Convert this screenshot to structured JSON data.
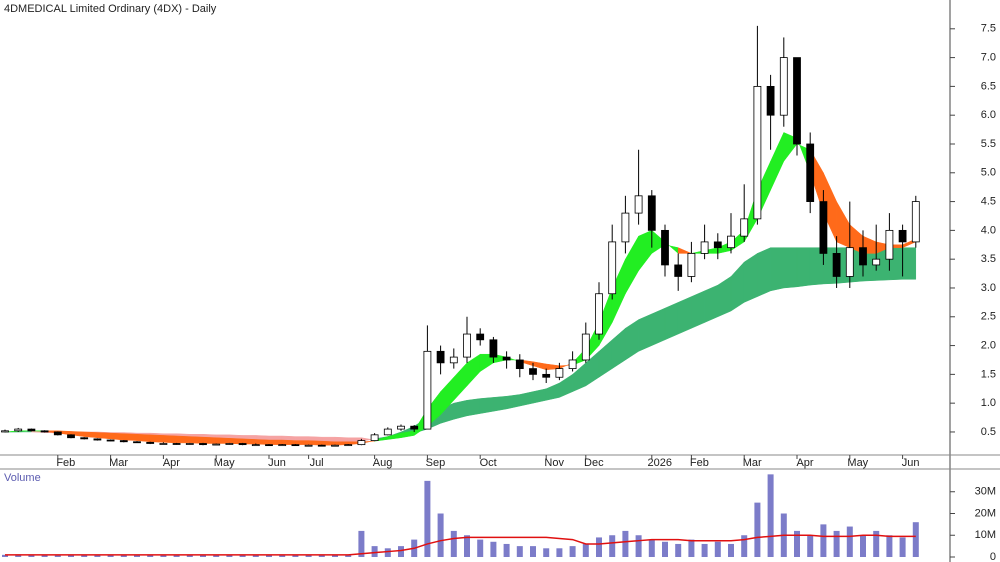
{
  "chart_data": [
    {
      "type": "candlestick",
      "title": "4DMEDICAL Limited Ordinary (4DX) - Daily",
      "categories": [
        null,
        null,
        null,
        null,
        "Feb",
        null,
        null,
        null,
        "Mar",
        null,
        null,
        null,
        "Apr",
        null,
        null,
        null,
        "May",
        null,
        null,
        null,
        "Jun",
        null,
        null,
        "Jul",
        null,
        null,
        null,
        null,
        "Aug",
        null,
        null,
        null,
        "Sep",
        null,
        null,
        null,
        "Oct",
        null,
        null,
        null,
        null,
        "Nov",
        null,
        null,
        "Dec",
        null,
        null,
        null,
        null,
        "2026",
        null,
        null,
        "Feb",
        null,
        null,
        null,
        "Mar",
        null,
        null,
        null,
        "Apr",
        null,
        null,
        null,
        "May",
        null,
        null,
        null,
        "Jun",
        null
      ],
      "open": [
        0.5,
        0.52,
        0.55,
        0.52,
        0.5,
        0.45,
        0.4,
        0.38,
        0.36,
        0.35,
        0.33,
        0.32,
        0.3,
        0.3,
        0.29,
        0.3,
        0.28,
        0.29,
        0.3,
        0.28,
        0.28,
        0.27,
        0.28,
        0.27,
        0.27,
        0.26,
        0.27,
        0.28,
        0.35,
        0.45,
        0.55,
        0.6,
        0.55,
        1.9,
        1.7,
        1.8,
        2.2,
        2.1,
        1.8,
        1.75,
        1.6,
        1.5,
        1.45,
        1.6,
        1.75,
        2.2,
        2.9,
        3.8,
        4.3,
        4.6,
        4.0,
        3.4,
        3.2,
        3.6,
        3.8,
        3.7,
        3.9,
        4.2,
        6.5,
        6.0,
        7.0,
        5.5,
        4.5,
        3.6,
        3.2,
        3.7,
        3.4,
        3.5,
        4.0,
        3.8
      ],
      "high": [
        0.54,
        0.57,
        0.56,
        0.53,
        0.51,
        0.46,
        0.41,
        0.39,
        0.37,
        0.36,
        0.34,
        0.33,
        0.32,
        0.31,
        0.31,
        0.31,
        0.3,
        0.31,
        0.31,
        0.3,
        0.29,
        0.29,
        0.29,
        0.28,
        0.28,
        0.28,
        0.29,
        0.38,
        0.48,
        0.58,
        0.63,
        0.62,
        2.35,
        2.0,
        1.95,
        2.5,
        2.3,
        2.15,
        1.9,
        1.85,
        1.7,
        1.6,
        1.7,
        1.9,
        2.4,
        3.1,
        4.1,
        4.6,
        5.4,
        4.7,
        4.1,
        3.6,
        3.8,
        4.1,
        3.95,
        4.3,
        4.8,
        7.55,
        6.7,
        7.35,
        7.0,
        5.7,
        4.7,
        3.9,
        4.5,
        4.0,
        4.1,
        4.3,
        4.1,
        4.6
      ],
      "low": [
        0.49,
        0.5,
        0.51,
        0.49,
        0.44,
        0.39,
        0.37,
        0.35,
        0.34,
        0.32,
        0.31,
        0.29,
        0.29,
        0.28,
        0.28,
        0.27,
        0.27,
        0.28,
        0.27,
        0.27,
        0.26,
        0.26,
        0.26,
        0.26,
        0.25,
        0.25,
        0.26,
        0.27,
        0.34,
        0.44,
        0.52,
        0.5,
        0.55,
        1.5,
        1.6,
        1.7,
        2.0,
        1.7,
        1.6,
        1.45,
        1.4,
        1.35,
        1.4,
        1.55,
        1.7,
        2.1,
        2.8,
        3.6,
        4.1,
        3.7,
        3.2,
        2.95,
        3.1,
        3.5,
        3.5,
        3.6,
        3.8,
        4.1,
        5.4,
        5.8,
        5.3,
        4.3,
        3.4,
        3.0,
        3.0,
        3.2,
        3.3,
        3.3,
        3.2,
        3.7
      ],
      "close": [
        0.52,
        0.55,
        0.52,
        0.5,
        0.45,
        0.4,
        0.38,
        0.36,
        0.35,
        0.33,
        0.32,
        0.3,
        0.3,
        0.29,
        0.3,
        0.28,
        0.29,
        0.3,
        0.28,
        0.28,
        0.27,
        0.28,
        0.27,
        0.27,
        0.26,
        0.27,
        0.28,
        0.35,
        0.45,
        0.55,
        0.6,
        0.55,
        1.9,
        1.7,
        1.8,
        2.2,
        2.1,
        1.8,
        1.75,
        1.6,
        1.5,
        1.45,
        1.6,
        1.75,
        2.2,
        2.9,
        3.8,
        4.3,
        4.6,
        4.0,
        3.4,
        3.2,
        3.6,
        3.8,
        3.7,
        3.9,
        4.2,
        6.5,
        6.0,
        7.0,
        5.5,
        4.5,
        3.6,
        3.2,
        3.7,
        3.4,
        3.5,
        4.0,
        3.8,
        4.5
      ],
      "short_fast": [
        0.5,
        0.52,
        0.52,
        0.51,
        0.48,
        0.45,
        0.42,
        0.4,
        0.38,
        0.36,
        0.35,
        0.33,
        0.32,
        0.31,
        0.31,
        0.3,
        0.3,
        0.3,
        0.29,
        0.29,
        0.28,
        0.28,
        0.28,
        0.28,
        0.27,
        0.27,
        0.28,
        0.3,
        0.35,
        0.42,
        0.48,
        0.52,
        0.9,
        1.2,
        1.45,
        1.7,
        1.85,
        1.85,
        1.8,
        1.72,
        1.65,
        1.58,
        1.6,
        1.7,
        1.95,
        2.4,
        3.0,
        3.5,
        3.9,
        4.0,
        3.8,
        3.6,
        3.6,
        3.65,
        3.7,
        3.8,
        4.0,
        4.7,
        5.2,
        5.7,
        5.6,
        5.0,
        4.3,
        3.8,
        3.7,
        3.6,
        3.6,
        3.7,
        3.7,
        3.8
      ],
      "short_slow": [
        0.5,
        0.51,
        0.52,
        0.52,
        0.52,
        0.51,
        0.5,
        0.49,
        0.48,
        0.47,
        0.46,
        0.45,
        0.44,
        0.43,
        0.42,
        0.41,
        0.4,
        0.39,
        0.38,
        0.37,
        0.36,
        0.36,
        0.35,
        0.35,
        0.34,
        0.33,
        0.33,
        0.33,
        0.34,
        0.37,
        0.4,
        0.44,
        0.6,
        0.8,
        1.05,
        1.3,
        1.55,
        1.7,
        1.75,
        1.75,
        1.72,
        1.68,
        1.65,
        1.66,
        1.75,
        2.0,
        2.4,
        2.9,
        3.3,
        3.6,
        3.75,
        3.7,
        3.6,
        3.6,
        3.6,
        3.65,
        3.8,
        4.2,
        4.7,
        5.2,
        5.5,
        5.4,
        5.0,
        4.5,
        4.1,
        3.9,
        3.8,
        3.75,
        3.75,
        3.85
      ],
      "long_fast": [
        0.5,
        0.5,
        0.5,
        0.49,
        0.48,
        0.47,
        0.46,
        0.45,
        0.44,
        0.43,
        0.42,
        0.41,
        0.4,
        0.39,
        0.38,
        0.37,
        0.37,
        0.36,
        0.36,
        0.35,
        0.35,
        0.34,
        0.34,
        0.34,
        0.33,
        0.33,
        0.33,
        0.34,
        0.38,
        0.42,
        0.5,
        0.6,
        0.75,
        0.9,
        1.0,
        1.05,
        1.08,
        1.1,
        1.12,
        1.15,
        1.2,
        1.25,
        1.35,
        1.5,
        1.7,
        1.9,
        2.1,
        2.3,
        2.45,
        2.55,
        2.65,
        2.75,
        2.85,
        2.95,
        3.05,
        3.2,
        3.45,
        3.6,
        3.7,
        3.7,
        3.7,
        3.7,
        3.7,
        3.7,
        3.7,
        3.7,
        3.7,
        3.7,
        3.7,
        3.7
      ],
      "long_slow": [
        0.5,
        0.5,
        0.51,
        0.51,
        0.51,
        0.5,
        0.5,
        0.5,
        0.49,
        0.49,
        0.48,
        0.48,
        0.47,
        0.47,
        0.46,
        0.46,
        0.45,
        0.45,
        0.44,
        0.44,
        0.43,
        0.43,
        0.42,
        0.42,
        0.41,
        0.41,
        0.4,
        0.4,
        0.36,
        0.38,
        0.42,
        0.48,
        0.55,
        0.65,
        0.72,
        0.78,
        0.82,
        0.86,
        0.9,
        0.95,
        1.0,
        1.05,
        1.1,
        1.2,
        1.3,
        1.45,
        1.6,
        1.75,
        1.9,
        2.0,
        2.1,
        2.2,
        2.3,
        2.4,
        2.5,
        2.6,
        2.75,
        2.85,
        2.95,
        3.0,
        3.02,
        3.05,
        3.07,
        3.08,
        3.1,
        3.12,
        3.13,
        3.14,
        3.15,
        3.15
      ],
      "colors": {
        "up_body": "#ffffff",
        "down_body": "#000000",
        "wick": "#000000",
        "short_up": "#22ee22",
        "short_down": "#ff6a1a",
        "long_up": "#3cb371",
        "long_down": "#f5a3a3"
      },
      "ylim": [
        0.1,
        8.0
      ],
      "yticks": [
        0.5,
        {
          "value": 1,
          "label": "1.0"
        },
        1.5,
        {
          "value": 2,
          "label": "2.0"
        },
        2.5,
        {
          "value": 3,
          "label": "3.0"
        },
        3.5,
        {
          "value": 4,
          "label": "4.0"
        },
        4.5,
        {
          "value": 5,
          "label": "5.0"
        },
        5.5,
        {
          "value": 6,
          "label": "6.0"
        },
        6.5,
        {
          "value": 7,
          "label": "7.0"
        },
        7.5
      ]
    },
    {
      "type": "bar",
      "title": "Volume",
      "values": [
        1000000,
        1200000,
        900000,
        1000000,
        1100000,
        900000,
        1000000,
        800000,
        900000,
        1000000,
        800000,
        900000,
        1000000,
        800000,
        900000,
        1000000,
        800000,
        900000,
        1000000,
        900000,
        800000,
        900000,
        1000000,
        800000,
        900000,
        1000000,
        1100000,
        12000000,
        5000000,
        4000000,
        5000000,
        8000000,
        35000000,
        20000000,
        12000000,
        10000000,
        8000000,
        7000000,
        6000000,
        5000000,
        5000000,
        4000000,
        4000000,
        5000000,
        6000000,
        9000000,
        10000000,
        12000000,
        10000000,
        8000000,
        7000000,
        6000000,
        8000000,
        6000000,
        7000000,
        6000000,
        10000000,
        25000000,
        38000000,
        20000000,
        12000000,
        10000000,
        15000000,
        12000000,
        14000000,
        10000000,
        12000000,
        10000000,
        9000000,
        16000000
      ],
      "ma": [
        1000000,
        1000000,
        1000000,
        1000000,
        1000000,
        1000000,
        1000000,
        1000000,
        1000000,
        1000000,
        1000000,
        1000000,
        1000000,
        1000000,
        1000000,
        1000000,
        1000000,
        1000000,
        1000000,
        1000000,
        1000000,
        1000000,
        1000000,
        1000000,
        1000000,
        1000000,
        1000000,
        1500000,
        2000000,
        2500000,
        3000000,
        4000000,
        6000000,
        7500000,
        8500000,
        9000000,
        9000000,
        9000000,
        9000000,
        9000000,
        9000000,
        9000000,
        8500000,
        8000000,
        6000000,
        6000000,
        6500000,
        7000000,
        7500000,
        8000000,
        8000000,
        8000000,
        7500000,
        7500000,
        7500000,
        7500000,
        8000000,
        9000000,
        9500000,
        10000000,
        10000000,
        10000000,
        9500000,
        9500000,
        9500000,
        10000000,
        10000000,
        9500000,
        9500000,
        9500000
      ],
      "color": "#7c7cc9",
      "ma_color": "#e01010",
      "ylim": [
        0,
        40000000
      ],
      "yticks": [
        0,
        {
          "value": 10000000,
          "label": "10M"
        },
        {
          "value": 20000000,
          "label": "20M"
        },
        {
          "value": 30000000,
          "label": "30M"
        }
      ]
    }
  ]
}
